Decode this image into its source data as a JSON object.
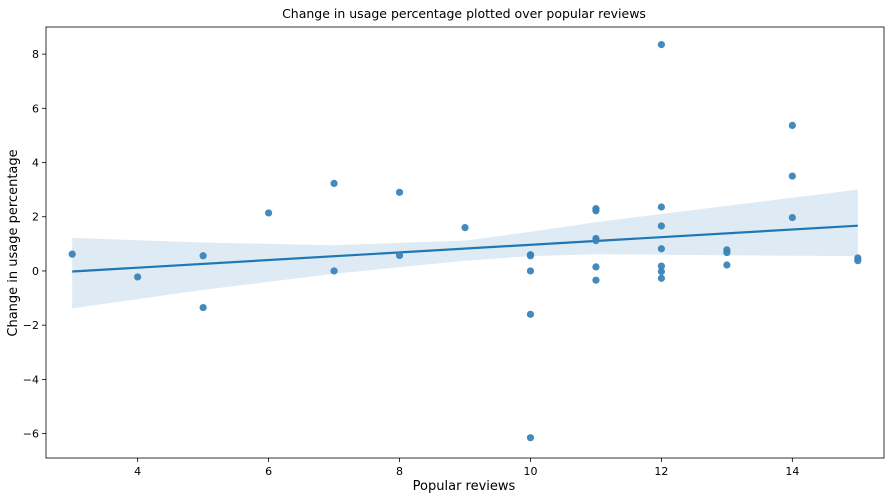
{
  "chart_data": {
    "type": "scatter",
    "title": "Change in usage percentage plotted over popular reviews",
    "xlabel": "Popular reviews",
    "ylabel": "Change in usage percentage",
    "xlim": [
      2.6,
      15.4
    ],
    "ylim": [
      -6.9,
      9.0
    ],
    "xticks": [
      4,
      6,
      8,
      10,
      12,
      14
    ],
    "yticks": [
      -6,
      -4,
      -2,
      0,
      2,
      4,
      6,
      8
    ],
    "grid": false,
    "colors": {
      "points": "#3a84b8",
      "line": "#1f77b4",
      "band": "#1f77b4"
    },
    "points": [
      {
        "x": 3,
        "y": 0.62
      },
      {
        "x": 4,
        "y": -0.22
      },
      {
        "x": 5,
        "y": 0.56
      },
      {
        "x": 5,
        "y": -1.35
      },
      {
        "x": 6,
        "y": 2.14
      },
      {
        "x": 7,
        "y": 3.23
      },
      {
        "x": 7,
        "y": 0.0
      },
      {
        "x": 8,
        "y": 2.9
      },
      {
        "x": 8,
        "y": 0.57
      },
      {
        "x": 9,
        "y": 1.6
      },
      {
        "x": 10,
        "y": 0.6
      },
      {
        "x": 10,
        "y": 0.56
      },
      {
        "x": 10,
        "y": 0.0
      },
      {
        "x": 10,
        "y": -1.6
      },
      {
        "x": 10,
        "y": -6.15
      },
      {
        "x": 11,
        "y": 2.3
      },
      {
        "x": 11,
        "y": 2.22
      },
      {
        "x": 11,
        "y": 1.2
      },
      {
        "x": 11,
        "y": 1.12
      },
      {
        "x": 11,
        "y": 0.15
      },
      {
        "x": 11,
        "y": -0.34
      },
      {
        "x": 12,
        "y": 8.35
      },
      {
        "x": 12,
        "y": 2.36
      },
      {
        "x": 12,
        "y": 1.66
      },
      {
        "x": 12,
        "y": 0.82
      },
      {
        "x": 12,
        "y": 0.18
      },
      {
        "x": 12,
        "y": -0.02
      },
      {
        "x": 12,
        "y": -0.27
      },
      {
        "x": 13,
        "y": 0.78
      },
      {
        "x": 13,
        "y": 0.68
      },
      {
        "x": 13,
        "y": 0.22
      },
      {
        "x": 14,
        "y": 5.37
      },
      {
        "x": 14,
        "y": 3.5
      },
      {
        "x": 14,
        "y": 1.97
      },
      {
        "x": 15,
        "y": 0.48
      },
      {
        "x": 15,
        "y": 0.38
      }
    ],
    "regression": {
      "x": [
        3,
        15
      ],
      "y": [
        -0.02,
        1.67
      ],
      "ci_x": [
        3,
        5,
        7,
        9,
        10,
        11,
        12,
        13,
        15
      ],
      "ci_upper": [
        1.22,
        1.05,
        0.95,
        1.12,
        1.45,
        1.8,
        2.1,
        2.4,
        3.0
      ],
      "ci_lower": [
        -1.38,
        -0.7,
        -0.1,
        0.38,
        0.55,
        0.62,
        0.6,
        0.58,
        0.55
      ]
    }
  }
}
